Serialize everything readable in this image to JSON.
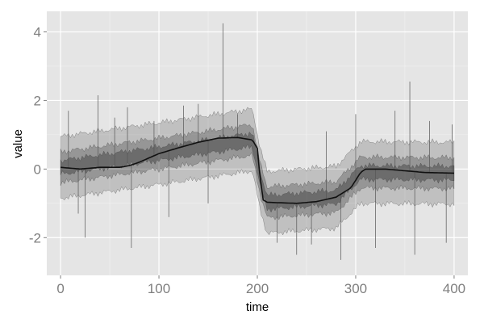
{
  "chart_data": {
    "type": "line",
    "title": "",
    "xlabel": "time",
    "ylabel": "value",
    "xlim": [
      -14,
      414
    ],
    "ylim": [
      -3.1,
      4.6
    ],
    "x_ticks": [
      0,
      100,
      200,
      300,
      400
    ],
    "x_tick_labels": [
      "0",
      "100",
      "200",
      "300",
      "400"
    ],
    "y_ticks": [
      -2,
      0,
      2,
      4
    ],
    "y_tick_labels": [
      "-2",
      "0",
      "2",
      "4"
    ],
    "grid": true,
    "legend": "none",
    "series": [
      {
        "role": "median",
        "x": [
          0,
          20,
          40,
          60,
          70,
          80,
          100,
          120,
          140,
          160,
          180,
          195,
          200,
          203,
          206,
          210,
          240,
          260,
          280,
          295,
          305,
          310,
          330,
          350,
          370,
          400
        ],
        "y": [
          0.05,
          0.0,
          0.05,
          0.05,
          0.1,
          0.2,
          0.45,
          0.62,
          0.78,
          0.9,
          0.92,
          0.85,
          0.6,
          -0.3,
          -0.9,
          -0.97,
          -1.0,
          -0.95,
          -0.82,
          -0.55,
          -0.1,
          0.0,
          0.0,
          -0.05,
          -0.1,
          -0.12
        ]
      },
      {
        "role": "band-inner",
        "x": [
          0,
          100,
          195,
          203,
          210,
          280,
          305,
          400
        ],
        "y_low": [
          -0.15,
          0.25,
          0.65,
          -0.5,
          -1.17,
          -1.02,
          -0.3,
          -0.32
        ],
        "y_high": [
          0.25,
          0.65,
          1.05,
          -0.1,
          -0.77,
          -0.62,
          0.1,
          0.08
        ]
      },
      {
        "role": "band-middle",
        "x": [
          0,
          100,
          195,
          203,
          210,
          280,
          305,
          400
        ],
        "y_low": [
          -0.4,
          0.0,
          0.4,
          -0.75,
          -1.42,
          -1.27,
          -0.55,
          -0.57
        ],
        "y_high": [
          0.5,
          0.9,
          1.3,
          0.15,
          -0.52,
          -0.37,
          0.35,
          0.33
        ]
      },
      {
        "role": "band-outer",
        "x": [
          0,
          100,
          195,
          203,
          210,
          280,
          305,
          400
        ],
        "y_low": [
          -0.85,
          -0.45,
          -0.05,
          -1.2,
          -1.87,
          -1.72,
          -1.0,
          -1.02
        ],
        "y_high": [
          0.95,
          1.35,
          1.75,
          0.6,
          -0.07,
          0.08,
          0.8,
          0.78
        ]
      },
      {
        "role": "spikes",
        "points": [
          [
            8,
            1.7
          ],
          [
            18,
            -1.3
          ],
          [
            25,
            -2.0
          ],
          [
            38,
            2.15
          ],
          [
            55,
            1.5
          ],
          [
            68,
            1.8
          ],
          [
            72,
            -2.3
          ],
          [
            95,
            1.4
          ],
          [
            110,
            -1.4
          ],
          [
            125,
            1.85
          ],
          [
            140,
            1.9
          ],
          [
            150,
            -1.0
          ],
          [
            165,
            4.25
          ],
          [
            180,
            1.6
          ],
          [
            220,
            -2.15
          ],
          [
            240,
            -2.5
          ],
          [
            255,
            -2.2
          ],
          [
            270,
            1.1
          ],
          [
            285,
            -2.65
          ],
          [
            300,
            1.6
          ],
          [
            320,
            -2.3
          ],
          [
            340,
            1.7
          ],
          [
            355,
            2.55
          ],
          [
            360,
            -2.5
          ],
          [
            375,
            1.4
          ],
          [
            392,
            -2.15
          ],
          [
            398,
            1.3
          ]
        ]
      }
    ]
  }
}
